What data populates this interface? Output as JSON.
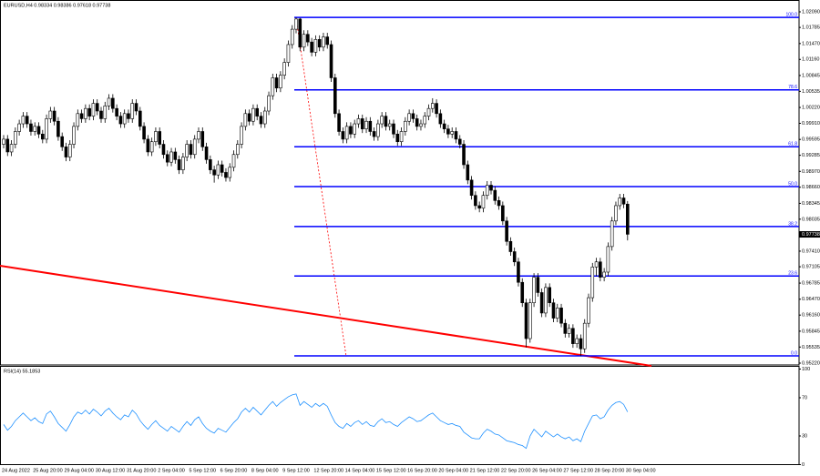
{
  "chart_data": {
    "type": "candlestick",
    "title": "EURUSD,H4 0.98334 0.98386 0.97618 0.97738",
    "categories": [
      "24 Aug 2022",
      null,
      null,
      null,
      null,
      null,
      null,
      null,
      "25 Aug 20:00",
      null,
      null,
      null,
      null,
      null,
      null,
      null,
      "29 Aug 04:00",
      null,
      null,
      null,
      null,
      null,
      null,
      null,
      "30 Aug 12:00",
      null,
      null,
      null,
      null,
      null,
      null,
      null,
      "31 Aug 20:00",
      null,
      null,
      null,
      null,
      null,
      null,
      null,
      "2 Sep 04:00",
      null,
      null,
      null,
      null,
      null,
      null,
      null,
      "5 Sep 12:00",
      null,
      null,
      null,
      null,
      null,
      null,
      null,
      "6 Sep 20:00",
      null,
      null,
      null,
      null,
      null,
      null,
      null,
      "8 Sep 04:00",
      null,
      null,
      null,
      null,
      null,
      null,
      null,
      "9 Sep 12:00",
      null,
      null,
      null,
      null,
      null,
      null,
      null,
      "12 Sep 20:00",
      null,
      null,
      null,
      null,
      null,
      null,
      null,
      "14 Sep 04:00",
      null,
      null,
      null,
      null,
      null,
      null,
      null,
      "15 Sep 12:00",
      null,
      null,
      null,
      null,
      null,
      null,
      null,
      "16 Sep 20:00",
      null,
      null,
      null,
      null,
      null,
      null,
      null,
      "20 Sep 04:00",
      null,
      null,
      null,
      null,
      null,
      null,
      null,
      "21 Sep 12:00",
      null,
      null,
      null,
      null,
      null,
      null,
      null,
      "22 Sep 20:00",
      null,
      null,
      null,
      null,
      null,
      null,
      null,
      "26 Sep 04:00",
      null,
      null,
      null,
      null,
      null,
      null,
      null,
      "27 Sep 12:00",
      null,
      null,
      null,
      null,
      null,
      null,
      null,
      "28 Sep 20:00",
      null,
      null,
      null,
      null,
      null,
      null,
      null,
      "30 Sep 04:00"
    ],
    "candles": [
      [
        0.995,
        0.9968,
        0.9942,
        0.996
      ],
      [
        0.996,
        0.9968,
        0.9927,
        0.9935
      ],
      [
        0.9935,
        0.9958,
        0.9927,
        0.995
      ],
      [
        0.995,
        0.9983,
        0.9942,
        0.9975
      ],
      [
        0.9975,
        0.9998,
        0.9967,
        0.999
      ],
      [
        0.999,
        1.0013,
        0.9982,
        1.0005
      ],
      [
        1.0005,
        1.0013,
        0.9982,
        0.999
      ],
      [
        0.999,
        0.9998,
        0.9967,
        0.9975
      ],
      [
        0.9975,
        0.9993,
        0.9967,
        0.9985
      ],
      [
        0.9985,
        0.9993,
        0.9962,
        0.997
      ],
      [
        0.997,
        0.9978,
        0.9952,
        0.996
      ],
      [
        0.996,
        1.0008,
        0.9952,
        1.0
      ],
      [
        1.0,
        1.0023,
        0.9992,
        1.0015
      ],
      [
        1.0015,
        1.0023,
        0.9987,
        0.9995
      ],
      [
        0.9995,
        1.0003,
        0.9957,
        0.9965
      ],
      [
        0.9965,
        0.9973,
        0.9937,
        0.9945
      ],
      [
        0.9945,
        0.9953,
        0.9917,
        0.9925
      ],
      [
        0.9925,
        0.9958,
        0.9917,
        0.995
      ],
      [
        0.995,
        0.9993,
        0.9942,
        0.9985
      ],
      [
        0.9985,
        1.0018,
        0.9977,
        1.001
      ],
      [
        1.001,
        1.0018,
        0.9992,
        1.0
      ],
      [
        1.0,
        1.0028,
        0.9992,
        1.002
      ],
      [
        1.002,
        1.0028,
        0.9997,
        1.0005
      ],
      [
        1.0005,
        1.0038,
        0.9997,
        1.003
      ],
      [
        1.003,
        1.0038,
        1.0007,
        1.0015
      ],
      [
        1.0015,
        1.0023,
        0.9992,
        1.0
      ],
      [
        1.0,
        1.0033,
        0.9992,
        1.0025
      ],
      [
        1.0025,
        1.0048,
        1.0017,
        1.004
      ],
      [
        1.004,
        1.0048,
        1.0012,
        1.002
      ],
      [
        1.002,
        1.0028,
        0.9997,
        1.0005
      ],
      [
        1.0005,
        1.0013,
        0.9982,
        0.999
      ],
      [
        0.999,
        1.0018,
        0.9982,
        1.001
      ],
      [
        1.001,
        1.0018,
        0.9992,
        1.0
      ],
      [
        1.0,
        1.0038,
        0.9992,
        1.003
      ],
      [
        1.003,
        1.0038,
        1.0007,
        1.0015
      ],
      [
        1.0015,
        1.0023,
        0.9977,
        0.9985
      ],
      [
        0.9985,
        0.9993,
        0.9952,
        0.996
      ],
      [
        0.996,
        0.9968,
        0.9927,
        0.9935
      ],
      [
        0.9935,
        0.9963,
        0.9927,
        0.9955
      ],
      [
        0.9955,
        0.9983,
        0.9947,
        0.9975
      ],
      [
        0.9975,
        0.9983,
        0.9942,
        0.995
      ],
      [
        0.995,
        0.9958,
        0.9922,
        0.993
      ],
      [
        0.993,
        0.9938,
        0.9907,
        0.9915
      ],
      [
        0.9915,
        0.9943,
        0.9907,
        0.9935
      ],
      [
        0.9935,
        0.9943,
        0.9912,
        0.992
      ],
      [
        0.992,
        0.9928,
        0.9892,
        0.99
      ],
      [
        0.99,
        0.9933,
        0.9892,
        0.9925
      ],
      [
        0.9925,
        0.9958,
        0.9917,
        0.995
      ],
      [
        0.995,
        0.9958,
        0.9922,
        0.993
      ],
      [
        0.993,
        0.9968,
        0.9922,
        0.996
      ],
      [
        0.996,
        0.9983,
        0.9952,
        0.9975
      ],
      [
        0.9975,
        0.9983,
        0.9937,
        0.9945
      ],
      [
        0.9945,
        0.9953,
        0.9912,
        0.992
      ],
      [
        0.992,
        0.9928,
        0.9892,
        0.99
      ],
      [
        0.99,
        0.9908,
        0.9875,
        0.989
      ],
      [
        0.989,
        0.9918,
        0.9882,
        0.991
      ],
      [
        0.991,
        0.9918,
        0.9887,
        0.9895
      ],
      [
        0.9895,
        0.9903,
        0.9877,
        0.9885
      ],
      [
        0.9885,
        0.9913,
        0.9877,
        0.9905
      ],
      [
        0.9905,
        0.9938,
        0.9897,
        0.993
      ],
      [
        0.993,
        0.9958,
        0.9922,
        0.995
      ],
      [
        0.995,
        0.9993,
        0.9942,
        0.9985
      ],
      [
        0.9985,
        1.0018,
        0.9977,
        1.001
      ],
      [
        1.001,
        1.0018,
        0.9987,
        0.9995
      ],
      [
        0.9995,
        1.0028,
        0.9987,
        1.002
      ],
      [
        1.002,
        1.0028,
        0.9997,
        1.0005
      ],
      [
        1.0005,
        1.0013,
        0.9982,
        0.999
      ],
      [
        0.999,
        1.0023,
        0.9982,
        1.0015
      ],
      [
        1.0015,
        1.0053,
        1.0007,
        1.0045
      ],
      [
        1.0045,
        1.0088,
        1.0037,
        1.008
      ],
      [
        1.008,
        1.0088,
        1.0052,
        1.006
      ],
      [
        1.006,
        1.0093,
        1.0052,
        1.0085
      ],
      [
        1.0085,
        1.0118,
        1.0077,
        1.011
      ],
      [
        1.011,
        1.0153,
        1.0102,
        1.0145
      ],
      [
        1.0145,
        1.0183,
        1.0137,
        1.0175
      ],
      [
        1.0175,
        1.0198,
        1.0167,
        1.0195
      ],
      [
        1.0195,
        1.0197,
        1.0132,
        1.014
      ],
      [
        1.014,
        1.0173,
        1.0132,
        1.0165
      ],
      [
        1.0165,
        1.0173,
        1.0142,
        1.015
      ],
      [
        1.015,
        1.0158,
        1.0122,
        1.013
      ],
      [
        1.013,
        1.0163,
        1.0122,
        1.0155
      ],
      [
        1.0155,
        1.0163,
        1.0132,
        1.014
      ],
      [
        1.014,
        1.0168,
        1.0132,
        1.016
      ],
      [
        1.016,
        1.0168,
        1.0137,
        1.0145
      ],
      [
        1.0145,
        1.0153,
        1.0072,
        1.008
      ],
      [
        1.008,
        1.0088,
        1.0002,
        1.001
      ],
      [
        1.001,
        1.0018,
        0.9967,
        0.9975
      ],
      [
        0.9975,
        0.9983,
        0.9952,
        0.996
      ],
      [
        0.996,
        0.9993,
        0.9952,
        0.9985
      ],
      [
        0.9985,
        0.9993,
        0.9962,
        0.997
      ],
      [
        0.997,
        0.9998,
        0.9962,
        0.999
      ],
      [
        0.999,
        1.0008,
        0.9982,
        1.0
      ],
      [
        1.0,
        1.0008,
        0.9972,
        0.998
      ],
      [
        0.998,
        1.0003,
        0.9972,
        0.9995
      ],
      [
        0.9995,
        1.0003,
        0.9967,
        0.9975
      ],
      [
        0.9975,
        0.9983,
        0.9957,
        0.9965
      ],
      [
        0.9965,
        0.9998,
        0.9957,
        0.999
      ],
      [
        0.999,
        1.0013,
        0.9982,
        1.0005
      ],
      [
        1.0005,
        1.0013,
        0.9977,
        0.9985
      ],
      [
        0.9985,
        0.9998,
        0.9977,
        0.999
      ],
      [
        0.999,
        0.9998,
        0.9962,
        0.997
      ],
      [
        0.997,
        0.9978,
        0.9947,
        0.9955
      ],
      [
        0.9955,
        0.9983,
        0.9947,
        0.9975
      ],
      [
        0.9975,
        1.0003,
        0.9967,
        0.9995
      ],
      [
        0.9995,
        1.0018,
        0.9987,
        1.001
      ],
      [
        1.001,
        1.0018,
        0.9992,
        1.0
      ],
      [
        1.0,
        1.0008,
        0.9977,
        0.9985
      ],
      [
        0.9985,
        0.9998,
        0.9977,
        0.999
      ],
      [
        0.999,
        1.0013,
        0.9982,
        1.0005
      ],
      [
        1.0005,
        1.0028,
        0.9997,
        1.002
      ],
      [
        1.002,
        1.004,
        1.0012,
        1.003
      ],
      [
        1.003,
        1.0038,
        1.0002,
        1.001
      ],
      [
        1.001,
        1.0018,
        0.9982,
        0.999
      ],
      [
        0.999,
        0.9998,
        0.9972,
        0.998
      ],
      [
        0.998,
        0.9988,
        0.9962,
        0.997
      ],
      [
        0.997,
        0.9983,
        0.9962,
        0.9975
      ],
      [
        0.9975,
        0.9983,
        0.9952,
        0.996
      ],
      [
        0.996,
        0.9968,
        0.9942,
        0.995
      ],
      [
        0.995,
        0.9958,
        0.9902,
        0.991
      ],
      [
        0.991,
        0.9918,
        0.9872,
        0.988
      ],
      [
        0.988,
        0.9888,
        0.9842,
        0.985
      ],
      [
        0.985,
        0.9858,
        0.9822,
        0.983
      ],
      [
        0.983,
        0.9838,
        0.9817,
        0.9825
      ],
      [
        0.9825,
        0.9858,
        0.9817,
        0.985
      ],
      [
        0.985,
        0.9878,
        0.9842,
        0.987
      ],
      [
        0.987,
        0.9878,
        0.9852,
        0.986
      ],
      [
        0.986,
        0.9868,
        0.9832,
        0.984
      ],
      [
        0.984,
        0.9848,
        0.9822,
        0.983
      ],
      [
        0.983,
        0.9838,
        0.9792,
        0.98
      ],
      [
        0.98,
        0.9808,
        0.9752,
        0.976
      ],
      [
        0.976,
        0.9768,
        0.9732,
        0.974
      ],
      [
        0.974,
        0.9748,
        0.9712,
        0.972
      ],
      [
        0.972,
        0.9728,
        0.9672,
        0.968
      ],
      [
        0.968,
        0.9688,
        0.9632,
        0.964
      ],
      [
        0.964,
        0.9648,
        0.9553,
        0.957
      ],
      [
        0.957,
        0.9648,
        0.9562,
        0.964
      ],
      [
        0.964,
        0.9698,
        0.9632,
        0.969
      ],
      [
        0.969,
        0.9698,
        0.9652,
        0.966
      ],
      [
        0.966,
        0.9668,
        0.9612,
        0.962
      ],
      [
        0.962,
        0.9678,
        0.9612,
        0.967
      ],
      [
        0.967,
        0.9678,
        0.9632,
        0.964
      ],
      [
        0.964,
        0.9648,
        0.9602,
        0.961
      ],
      [
        0.961,
        0.9638,
        0.9602,
        0.963
      ],
      [
        0.963,
        0.9638,
        0.9592,
        0.96
      ],
      [
        0.96,
        0.9608,
        0.9572,
        0.958
      ],
      [
        0.958,
        0.9598,
        0.9572,
        0.959
      ],
      [
        0.959,
        0.9598,
        0.9552,
        0.956
      ],
      [
        0.956,
        0.9578,
        0.9552,
        0.957
      ],
      [
        0.957,
        0.9578,
        0.9536,
        0.955
      ],
      [
        0.955,
        0.9608,
        0.9542,
        0.96
      ],
      [
        0.96,
        0.9658,
        0.9592,
        0.965
      ],
      [
        0.965,
        0.9718,
        0.9642,
        0.971
      ],
      [
        0.971,
        0.9728,
        0.9692,
        0.972
      ],
      [
        0.972,
        0.9728,
        0.9682,
        0.969
      ],
      [
        0.969,
        0.9708,
        0.9682,
        0.97
      ],
      [
        0.97,
        0.9758,
        0.9692,
        0.975
      ],
      [
        0.975,
        0.9808,
        0.9742,
        0.98
      ],
      [
        0.98,
        0.9838,
        0.9792,
        0.983
      ],
      [
        0.983,
        0.9853,
        0.9822,
        0.9845
      ],
      [
        0.9845,
        0.9853,
        0.9825,
        0.9833
      ],
      [
        0.9833,
        0.9839,
        0.9762,
        0.9774
      ]
    ],
    "colors": {
      "up": "#ffffff",
      "down": "#000000",
      "outline": "#000000",
      "fib": "#0000ff",
      "rsi": "#1e90ff"
    },
    "ylim": [
      0.9522,
      1.0209
    ],
    "yticks": [
      {
        "value": 1.0209,
        "label": "1.02090"
      },
      {
        "value": 1.01785,
        "label": "1.01785"
      },
      {
        "value": 1.0147,
        "label": "1.01470"
      },
      {
        "value": 1.0116,
        "label": "1.01160"
      },
      {
        "value": 1.00845,
        "label": "1.00845"
      },
      {
        "value": 1.00535,
        "label": "1.00535"
      },
      {
        "value": 1.0022,
        "label": "1.00220"
      },
      {
        "value": 0.9991,
        "label": "0.99910"
      },
      {
        "value": 0.99595,
        "label": "0.99595"
      },
      {
        "value": 0.99285,
        "label": "0.99285"
      },
      {
        "value": 0.9897,
        "label": "0.98970"
      },
      {
        "value": 0.9866,
        "label": "0.98660"
      },
      {
        "value": 0.98345,
        "label": "0.98345"
      },
      {
        "value": 0.98035,
        "label": "0.98035"
      },
      {
        "value": 0.9741,
        "label": "0.97410"
      },
      {
        "value": 0.97105,
        "label": "0.97105"
      },
      {
        "value": 0.96785,
        "label": "0.96785"
      },
      {
        "value": 0.9647,
        "label": "0.96470"
      },
      {
        "value": 0.9616,
        "label": "0.96160"
      },
      {
        "value": 0.95845,
        "label": "0.95845"
      },
      {
        "value": 0.95535,
        "label": "0.95535"
      },
      {
        "value": 0.9522,
        "label": "0.95220"
      }
    ],
    "last_price": {
      "value": 0.97738,
      "label": "0.97738"
    },
    "fib_levels": [
      {
        "label": "100.0",
        "value": 1.0198
      },
      {
        "label": "78.6",
        "value": 1.00564
      },
      {
        "label": "61.8",
        "value": 0.99452
      },
      {
        "label": "50.0",
        "value": 0.98672
      },
      {
        "label": "38.2",
        "value": 0.97891
      },
      {
        "label": "23.6",
        "value": 0.96925
      },
      {
        "label": "0.0",
        "value": 0.95363
      }
    ],
    "indicator": {
      "type": "line",
      "title": "RSI(14) 55.1853",
      "ylim": [
        0,
        100
      ],
      "yticks": [
        100,
        70,
        30,
        0
      ],
      "values": [
        42,
        36,
        40,
        46,
        50,
        54,
        50,
        46,
        49,
        45,
        43,
        53,
        56,
        50,
        43,
        39,
        35,
        42,
        50,
        55,
        53,
        57,
        53,
        58,
        55,
        51,
        56,
        59,
        54,
        50,
        47,
        52,
        50,
        57,
        53,
        46,
        41,
        37,
        42,
        46,
        41,
        38,
        35,
        40,
        37,
        34,
        40,
        45,
        41,
        47,
        50,
        43,
        38,
        35,
        33,
        38,
        36,
        34,
        39,
        44,
        48,
        55,
        59,
        55,
        60,
        56,
        52,
        57,
        62,
        66,
        61,
        65,
        68,
        71,
        73,
        74,
        62,
        66,
        63,
        60,
        64,
        61,
        64,
        61,
        52,
        44,
        40,
        38,
        43,
        40,
        44,
        46,
        42,
        45,
        41,
        40,
        45,
        48,
        44,
        45,
        42,
        40,
        44,
        47,
        50,
        48,
        45,
        46,
        49,
        52,
        54,
        50,
        46,
        44,
        42,
        43,
        41,
        40,
        34,
        31,
        28,
        27,
        27,
        33,
        37,
        35,
        32,
        31,
        28,
        25,
        24,
        23,
        21,
        20,
        17,
        30,
        37,
        33,
        29,
        35,
        32,
        29,
        32,
        29,
        27,
        29,
        25,
        27,
        24,
        35,
        43,
        51,
        52,
        48,
        50,
        57,
        62,
        65,
        66,
        63,
        55.1853
      ]
    }
  }
}
